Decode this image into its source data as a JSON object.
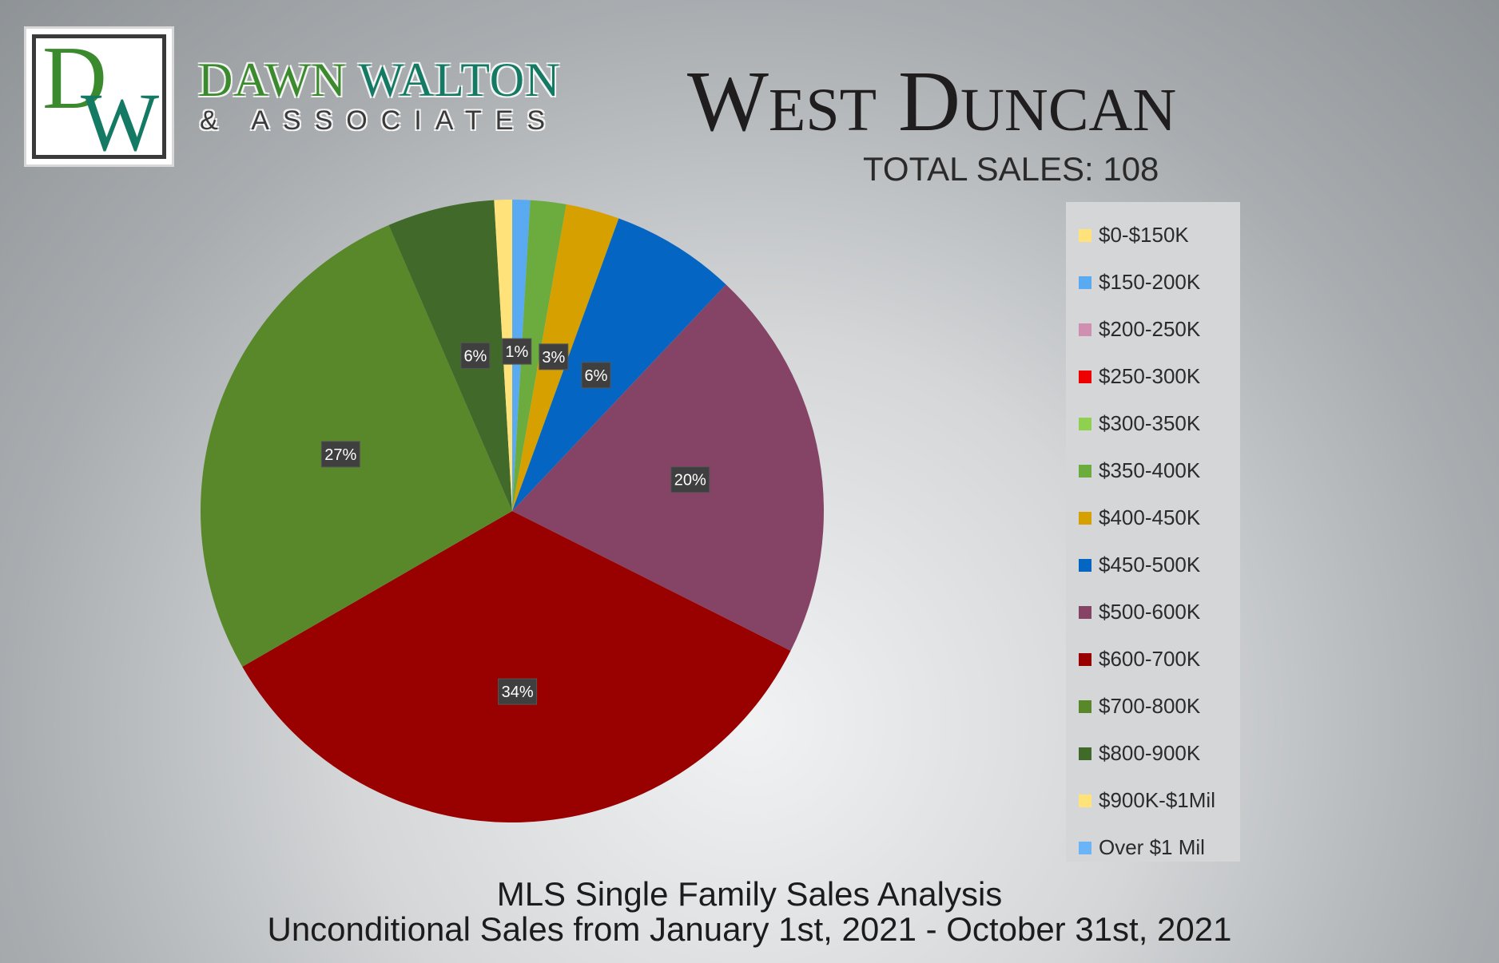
{
  "brand": {
    "logo_letters": "DW",
    "name_part1": "DAWN",
    "name_part2": "WALTON",
    "subtitle": "& ASSOCIATES",
    "colors": {
      "green": "#3c8a2e",
      "teal": "#157a64"
    }
  },
  "header": {
    "title": "West Duncan",
    "total_sales": "TOTAL SALES: 108"
  },
  "footer": {
    "line1": "MLS Single Family Sales Analysis",
    "line2": "Unconditional Sales from January 1st, 2021 - October 31st, 2021"
  },
  "chart_data": {
    "type": "pie",
    "title": "West Duncan",
    "legend_placement": "right",
    "series": [
      {
        "name": "",
        "values": [
          0,
          1,
          0,
          0,
          0,
          2,
          3,
          6,
          20,
          34,
          27,
          6,
          1,
          0
        ]
      }
    ],
    "categories": [
      "$0-$150K",
      "$150-200K",
      "$200-250K",
      "$250-300K",
      "$300-350K",
      "$350-400K",
      "$400-450K",
      "$450-500K",
      "$500-600K",
      "$600-700K",
      "$700-800K",
      "$800-900K",
      "$900K-$1Mil",
      "Over $1 Mil"
    ],
    "values": [
      0,
      1,
      0,
      0,
      0,
      2,
      3,
      7,
      22,
      37,
      29,
      6,
      1,
      0
    ],
    "data_labels": [
      "",
      "1%",
      "",
      "",
      "",
      "",
      "3%",
      "6%",
      "20%",
      "34%",
      "27%",
      "6%",
      "",
      ""
    ],
    "colors": [
      "#ffe27a",
      "#5aaaf2",
      "#d08fb0",
      "#ee0000",
      "#8fd14f",
      "#6cac3f",
      "#d6a000",
      "#0565c2",
      "#854466",
      "#990000",
      "#588829",
      "#41692a",
      "#ffe27a",
      "#6ab4f7"
    ]
  }
}
